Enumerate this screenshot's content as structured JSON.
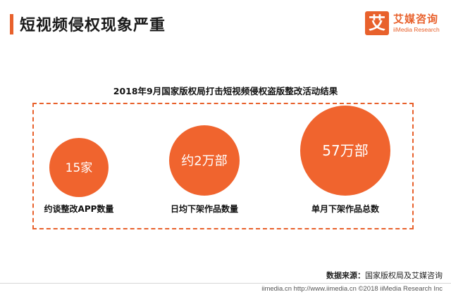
{
  "header": {
    "title": "短视频侵权现象严重",
    "accent_color": "#e8612c"
  },
  "logo": {
    "mark": "艾",
    "name_cn": "艾媒咨询",
    "name_en": "iiMedia Research"
  },
  "chart_data": {
    "type": "bubble",
    "title": "2018年9月国家版权局打击短视频侵权盗版整改活动结果",
    "color": "#f0642e",
    "items": [
      {
        "label": "约谈整改APP数量",
        "value_text": "15家",
        "value": 15,
        "unit": "家"
      },
      {
        "label": "日均下架作品数量",
        "value_text": "约2万部",
        "value": 2,
        "unit": "万部"
      },
      {
        "label": "单月下架作品总数",
        "value_text": "57万部",
        "value": 57,
        "unit": "万部"
      }
    ]
  },
  "source": {
    "label": "数据来源：",
    "text": "国家版权局及艾媒咨询"
  },
  "footer": {
    "text": "iimedia.cn  http://www.iimedia.cn  ©2018  iiMedia Research  Inc"
  }
}
